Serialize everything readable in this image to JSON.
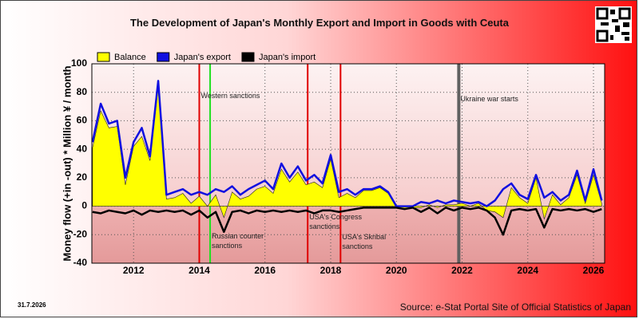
{
  "chart_data": {
    "type": "line",
    "title": "The Development of Japan's Monthly Export and Import in Goods with Ceuta",
    "ylabel": "Money flow (+in -out) * Million ¥ / month",
    "date": "31.7.2026",
    "source": "Source: e-Stat Portal Site of Official Statistics of Japan",
    "xlim": [
      2010.73,
      2026.34
    ],
    "xticks": [
      2012,
      2014,
      2016,
      2018,
      2020,
      2022,
      2024,
      2026
    ],
    "ylim": [
      -40,
      100
    ],
    "yticks": [
      -40,
      -20,
      0,
      20,
      40,
      60,
      80,
      100
    ],
    "grid": true,
    "x": [
      2010.75,
      2011.0,
      2011.25,
      2011.5,
      2011.75,
      2012.0,
      2012.25,
      2012.5,
      2012.75,
      2013.0,
      2013.25,
      2013.5,
      2013.75,
      2014.0,
      2014.25,
      2014.5,
      2014.75,
      2015.0,
      2015.25,
      2015.5,
      2015.75,
      2016.0,
      2016.25,
      2016.5,
      2016.75,
      2017.0,
      2017.25,
      2017.5,
      2017.75,
      2018.0,
      2018.25,
      2018.5,
      2018.75,
      2019.0,
      2019.25,
      2019.5,
      2019.75,
      2020.0,
      2020.25,
      2020.5,
      2020.75,
      2021.0,
      2021.25,
      2021.5,
      2021.75,
      2022.0,
      2022.25,
      2022.5,
      2022.75,
      2023.0,
      2023.25,
      2023.5,
      2023.75,
      2024.0,
      2024.25,
      2024.5,
      2024.75,
      2025.0,
      2025.25,
      2025.5,
      2025.75,
      2026.0,
      2026.25
    ],
    "series": [
      {
        "name": "Balance",
        "color": "#ffff00",
        "fill": true,
        "values": [
          41,
          67,
          55,
          56,
          15,
          42,
          49,
          32,
          84,
          5,
          6,
          9,
          2,
          7,
          0,
          8,
          -8,
          10,
          5,
          7,
          12,
          14,
          9,
          26,
          17,
          24,
          15,
          17,
          13,
          33,
          6,
          9,
          6,
          11,
          11,
          13,
          9,
          -1,
          -2,
          -1,
          -1,
          1,
          -1,
          1,
          1,
          2,
          0,
          2,
          -3,
          -4,
          -8,
          13,
          6,
          2,
          20,
          -9,
          8,
          1,
          6,
          22,
          2,
          22,
          2
        ]
      },
      {
        "name": "Japan's export",
        "color": "#1010e0",
        "values": [
          45,
          72,
          58,
          60,
          20,
          45,
          55,
          35,
          88,
          8,
          10,
          12,
          8,
          10,
          8,
          12,
          10,
          14,
          8,
          12,
          15,
          18,
          12,
          30,
          20,
          28,
          18,
          22,
          16,
          36,
          10,
          12,
          8,
          12,
          12,
          14,
          10,
          0,
          0,
          0,
          3,
          2,
          4,
          2,
          4,
          3,
          2,
          3,
          0,
          4,
          12,
          16,
          8,
          5,
          22,
          6,
          10,
          4,
          8,
          25,
          4,
          26,
          4
        ]
      },
      {
        "name": "Japan's import",
        "color": "#000000",
        "values": [
          -4,
          -5,
          -3,
          -4,
          -5,
          -3,
          -6,
          -3,
          -4,
          -3,
          -4,
          -3,
          -6,
          -3,
          -8,
          -4,
          -18,
          -4,
          -3,
          -5,
          -3,
          -4,
          -3,
          -4,
          -3,
          -4,
          -3,
          -5,
          -3,
          -3,
          -4,
          -3,
          -2,
          -1,
          -1,
          -1,
          -1,
          -1,
          -2,
          -1,
          -4,
          -1,
          -5,
          -1,
          -3,
          -1,
          -2,
          -1,
          -3,
          -8,
          -20,
          -3,
          -2,
          -3,
          -2,
          -15,
          -2,
          -3,
          -2,
          -3,
          -2,
          -4,
          -2
        ]
      }
    ],
    "events": [
      {
        "x": 2014.0,
        "label": "Western sanctions",
        "color": "#e00000"
      },
      {
        "x": 2014.33,
        "label": "Russian counter sanctions",
        "color": "#20e020"
      },
      {
        "x": 2017.3,
        "label": "USA's Congress sanctions",
        "color": "#e00000"
      },
      {
        "x": 2018.3,
        "label": "USA's Skribal sanctions",
        "color": "#e00000"
      },
      {
        "x": 2021.9,
        "label": "Ukraine war starts",
        "color": "#606060"
      }
    ]
  }
}
